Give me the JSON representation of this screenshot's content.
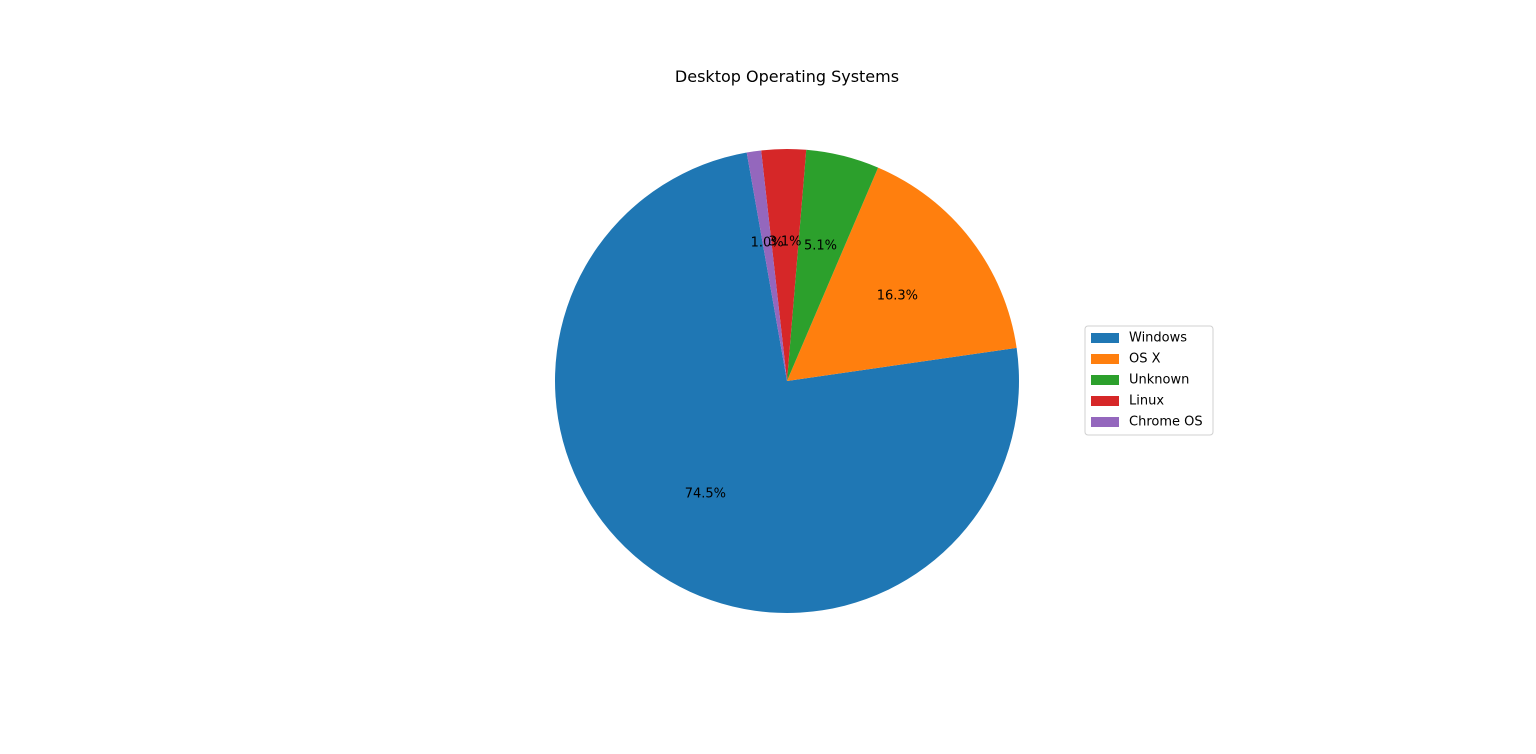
{
  "chart_data": {
    "type": "pie",
    "title": "Desktop Operating Systems",
    "labels": [
      "Windows",
      "OS X",
      "Unknown",
      "Linux",
      "Chrome OS"
    ],
    "values": [
      74.5,
      16.3,
      5.1,
      3.1,
      1.0
    ],
    "autopct_labels": [
      "74.5%",
      "16.3%",
      "5.1%",
      "3.1%",
      "1.0%"
    ],
    "colors": [
      "#1f77b4",
      "#ff7f0e",
      "#2ca02c",
      "#d62728",
      "#9467bd"
    ],
    "start_angle_deg": 100.0,
    "direction": "counterclockwise",
    "legend": {
      "placement": "center-right",
      "entries": [
        "Windows",
        "OS X",
        "Unknown",
        "Linux",
        "Chrome OS"
      ]
    }
  }
}
